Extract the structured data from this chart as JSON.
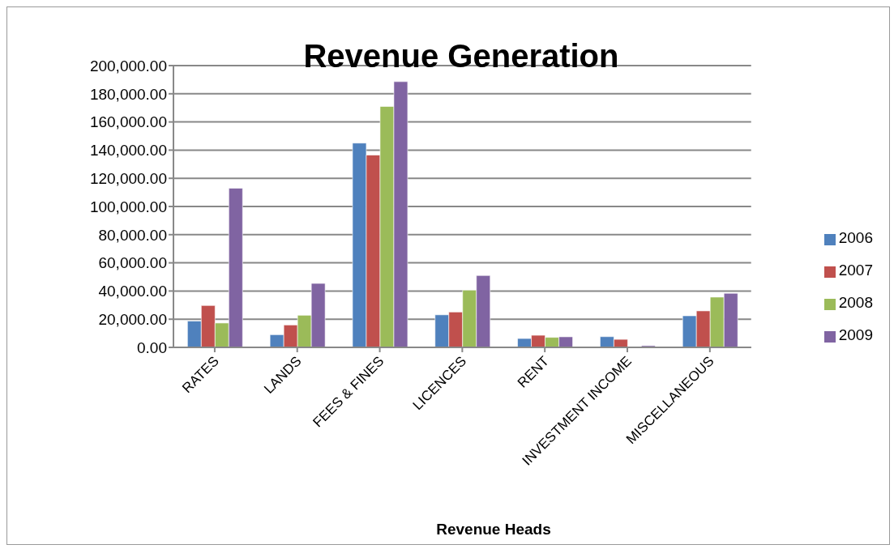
{
  "chart_data": {
    "type": "bar",
    "title": "Revenue Generation",
    "xlabel": "Revenue Heads",
    "categories": [
      "RATES",
      "LANDS",
      "FEES & FINES",
      "LICENCES",
      "RENT",
      "INVESTMENT INCOME",
      "MISCELLANEOUS"
    ],
    "series": [
      {
        "name": "2006",
        "color": "#4f81bd",
        "values": [
          18700,
          9000,
          145000,
          23100,
          6300,
          7600,
          22400
        ]
      },
      {
        "name": "2007",
        "color": "#c0504d",
        "values": [
          29700,
          15900,
          136500,
          25100,
          8600,
          5700,
          25900
        ]
      },
      {
        "name": "2008",
        "color": "#9bbb59",
        "values": [
          17300,
          22800,
          171000,
          40600,
          7100,
          0,
          35700
        ]
      },
      {
        "name": "2009",
        "color": "#8064a2",
        "values": [
          113000,
          45400,
          188600,
          51000,
          7500,
          1200,
          38400
        ]
      }
    ],
    "ylim": [
      0,
      200000
    ],
    "yticks": [
      {
        "value": 0,
        "label": "0.00"
      },
      {
        "value": 20000,
        "label": "20,000.00"
      },
      {
        "value": 40000,
        "label": "40,000.00"
      },
      {
        "value": 60000,
        "label": "60,000.00"
      },
      {
        "value": 80000,
        "label": "80,000.00"
      },
      {
        "value": 100000,
        "label": "100,000.00"
      },
      {
        "value": 120000,
        "label": "120,000.00"
      },
      {
        "value": 140000,
        "label": "140,000.00"
      },
      {
        "value": 160000,
        "label": "160,000.00"
      },
      {
        "value": 180000,
        "label": "180,000.00"
      },
      {
        "value": 200000,
        "label": "200,000.00"
      }
    ],
    "grid": "y",
    "legend": "right"
  }
}
